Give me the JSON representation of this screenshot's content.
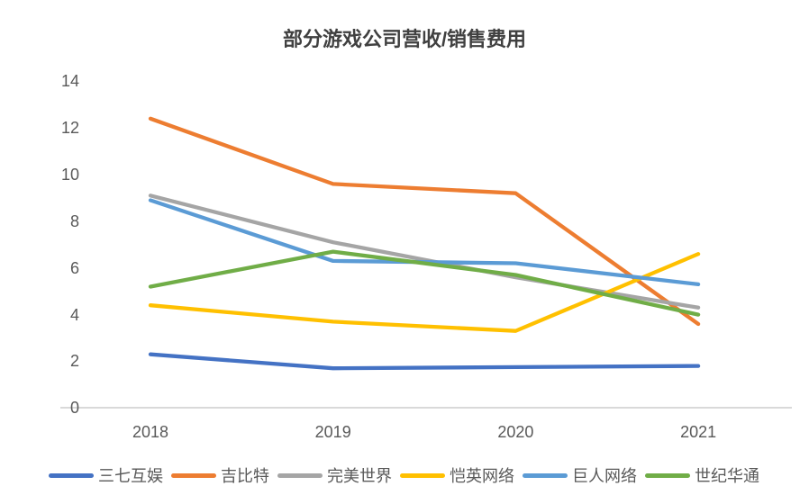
{
  "chart_data": {
    "type": "line",
    "title": "部分游戏公司营收/销售费用",
    "xlabel": "",
    "ylabel": "",
    "categories": [
      "2018",
      "2019",
      "2020",
      "2021"
    ],
    "y_ticks": [
      "0",
      "2",
      "4",
      "6",
      "8",
      "10",
      "12",
      "14"
    ],
    "ylim": [
      0,
      14
    ],
    "grid": false,
    "legend_position": "bottom",
    "series": [
      {
        "name": "三七互娱",
        "color": "#4472C4",
        "values": [
          2.3,
          1.7,
          1.75,
          1.8
        ]
      },
      {
        "name": "吉比特",
        "color": "#ED7D31",
        "values": [
          12.4,
          9.6,
          9.2,
          3.6
        ]
      },
      {
        "name": "完美世界",
        "color": "#A5A5A5",
        "values": [
          9.1,
          7.1,
          5.6,
          4.3
        ]
      },
      {
        "name": "恺英网络",
        "color": "#FFC000",
        "values": [
          4.4,
          3.7,
          3.3,
          6.6
        ]
      },
      {
        "name": "巨人网络",
        "color": "#5B9BD5",
        "values": [
          8.9,
          6.3,
          6.2,
          5.3
        ]
      },
      {
        "name": "世纪华通",
        "color": "#70AD47",
        "values": [
          5.2,
          6.7,
          5.7,
          4.0
        ]
      }
    ],
    "colors": {
      "title_text": "#404040",
      "axis_text": "#595959",
      "axis_line": "#D9D9D9",
      "background": "#FFFFFF"
    }
  }
}
